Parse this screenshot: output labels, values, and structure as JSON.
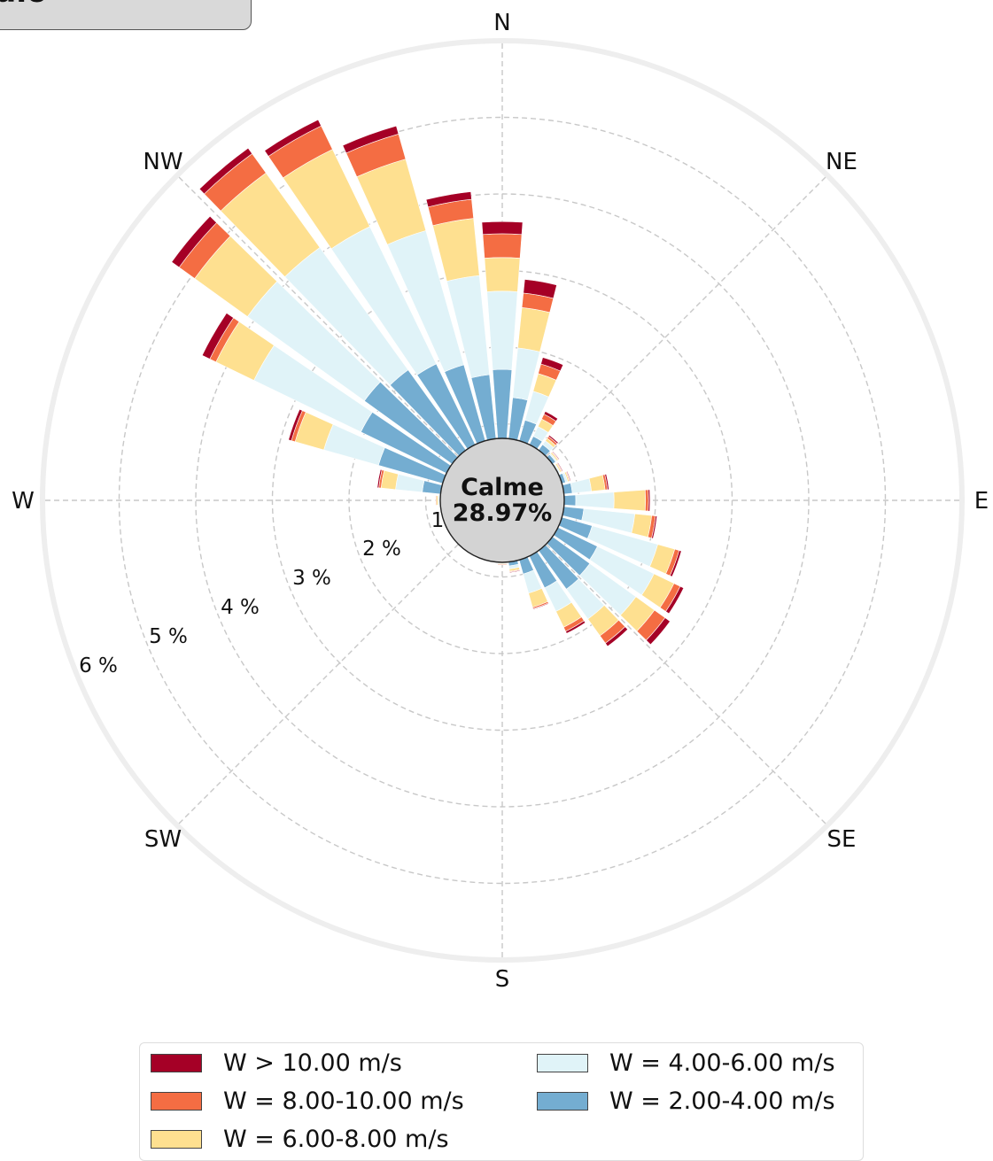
{
  "title": "edio",
  "calm": {
    "label": "Calme",
    "value": "28.97%"
  },
  "colors": {
    "bin_gt10": "#a50026",
    "bin_8_10": "#f46d43",
    "bin_6_8": "#fee090",
    "bin_4_6": "#e0f3f8",
    "bin_2_4": "#74add1",
    "calm_fill": "#d3d3d3",
    "grid": "#c8c8c8",
    "frame": "#eeeeee"
  },
  "directions": [
    "N",
    "NE",
    "E",
    "SE",
    "S",
    "SW",
    "W",
    "NW"
  ],
  "radial_labels": [
    "1",
    "2 %",
    "3 %",
    "4 %",
    "5 %",
    "6 %"
  ],
  "legend": [
    {
      "label": "W > 10.00 m/s",
      "color": "#a50026"
    },
    {
      "label": "W = 8.00-10.00 m/s",
      "color": "#f46d43"
    },
    {
      "label": "W = 6.00-8.00 m/s",
      "color": "#fee090"
    },
    {
      "label": "W = 4.00-6.00 m/s",
      "color": "#e0f3f8"
    },
    {
      "label": "W = 2.00-4.00 m/s",
      "color": "#74add1"
    }
  ],
  "chart_data": {
    "type": "windrose",
    "unit": "%",
    "calm_percent": 28.97,
    "rmax": 6,
    "rticks": [
      1,
      2,
      3,
      4,
      5,
      6
    ],
    "bins": [
      "W = 2.00-4.00 m/s",
      "W = 4.00-6.00 m/s",
      "W = 6.00-8.00 m/s",
      "W = 8.00-10.00 m/s",
      "W > 10.00 m/s"
    ],
    "sectors_deg": [
      0,
      10,
      20,
      30,
      40,
      50,
      60,
      70,
      80,
      90,
      100,
      110,
      120,
      130,
      140,
      150,
      160,
      170,
      180,
      190,
      200,
      210,
      220,
      230,
      240,
      250,
      260,
      270,
      280,
      290,
      300,
      310,
      320,
      330,
      340,
      350
    ],
    "cumulative": [
      [
        1.71,
        2.73,
        3.17,
        3.48,
        3.64
      ],
      [
        1.35,
        2.0,
        2.53,
        2.72,
        2.9
      ],
      [
        1.09,
        1.48,
        1.72,
        1.85,
        1.94
      ],
      [
        0.93,
        1.07,
        1.18,
        1.25,
        1.29
      ],
      [
        0.9,
        0.96,
        1.0,
        1.03,
        1.05
      ],
      [
        0.86,
        0.88,
        0.9,
        0.91,
        0.92
      ],
      [
        0.82,
        0.84,
        0.86,
        0.87,
        0.88
      ],
      [
        0.86,
        0.89,
        0.91,
        0.92,
        0.93
      ],
      [
        0.92,
        1.17,
        1.35,
        1.38,
        1.4
      ],
      [
        0.96,
        1.46,
        1.87,
        1.91,
        1.93
      ],
      [
        1.07,
        1.74,
        1.96,
        2.01,
        2.03
      ],
      [
        1.22,
        2.11,
        2.34,
        2.4,
        2.43
      ],
      [
        1.38,
        2.2,
        2.49,
        2.58,
        2.63
      ],
      [
        1.41,
        2.15,
        2.45,
        2.62,
        2.7
      ],
      [
        1.43,
        1.91,
        2.18,
        2.3,
        2.35
      ],
      [
        1.27,
        1.61,
        1.84,
        1.9,
        1.93
      ],
      [
        1.0,
        1.26,
        1.45,
        1.47,
        1.48
      ],
      [
        0.86,
        0.9,
        0.93,
        0.94,
        0.95
      ],
      [
        0.8,
        0.82,
        0.83,
        0.84,
        0.84
      ],
      [
        0.79,
        0.8,
        0.81,
        0.81,
        0.81
      ],
      [
        0.78,
        0.79,
        0.79,
        0.79,
        0.79
      ],
      [
        0.78,
        0.78,
        0.78,
        0.78,
        0.78
      ],
      [
        0.78,
        0.78,
        0.78,
        0.78,
        0.78
      ],
      [
        0.78,
        0.78,
        0.78,
        0.78,
        0.78
      ],
      [
        0.78,
        0.78,
        0.78,
        0.78,
        0.78
      ],
      [
        0.78,
        0.78,
        0.78,
        0.78,
        0.78
      ],
      [
        0.79,
        0.8,
        0.81,
        0.81,
        0.81
      ],
      [
        0.82,
        0.84,
        0.86,
        0.87,
        0.87
      ],
      [
        1.05,
        1.4,
        1.59,
        1.62,
        1.64
      ],
      [
        1.68,
        2.42,
        2.81,
        2.86,
        2.9
      ],
      [
        2.05,
        3.6,
        4.15,
        4.24,
        4.35
      ],
      [
        2.22,
        4.1,
        4.95,
        5.2,
        5.32
      ],
      [
        2.1,
        4.07,
        5.27,
        5.58,
        5.67
      ],
      [
        1.98,
        3.97,
        5.09,
        5.43,
        5.52
      ],
      [
        1.84,
        3.66,
        4.63,
        4.97,
        5.08
      ],
      [
        1.65,
        2.95,
        3.7,
        3.95,
        4.05
      ]
    ]
  }
}
